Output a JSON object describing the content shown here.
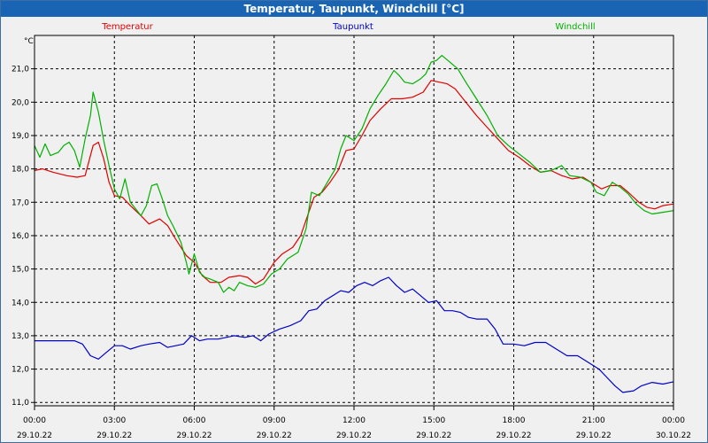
{
  "window": {
    "title": "Temperatur, Taupunkt, Windchill [°C]"
  },
  "chart_data": {
    "type": "line",
    "title": "Temperatur, Taupunkt, Windchill [°C]",
    "ylabel": "°C",
    "ylim": [
      10.9,
      22.0
    ],
    "xlim": [
      0,
      24
    ],
    "grid": true,
    "legend_placement": "top",
    "x_ticks": [
      {
        "x": 0,
        "time": "00:00",
        "date": "29.10.22"
      },
      {
        "x": 3,
        "time": "03:00",
        "date": "29.10.22"
      },
      {
        "x": 6,
        "time": "06:00",
        "date": "29.10.22"
      },
      {
        "x": 9,
        "time": "09:00",
        "date": "29.10.22"
      },
      {
        "x": 12,
        "time": "12:00",
        "date": "29.10.22"
      },
      {
        "x": 15,
        "time": "15:00",
        "date": "29.10.22"
      },
      {
        "x": 18,
        "time": "18:00",
        "date": "29.10.22"
      },
      {
        "x": 21,
        "time": "21:00",
        "date": "29.10.22"
      },
      {
        "x": 24,
        "time": "00:00",
        "date": "30.10.22"
      }
    ],
    "y_ticks": [
      "11,0",
      "12,0",
      "13,0",
      "14,0",
      "15,0",
      "16,0",
      "17,0",
      "18,0",
      "19,0",
      "20,0",
      "21,0"
    ],
    "y_tick_values": [
      11,
      12,
      13,
      14,
      15,
      16,
      17,
      18,
      19,
      20,
      21
    ],
    "series": [
      {
        "name": "Temperatur",
        "color": "#e00000",
        "points": [
          [
            0,
            17.95
          ],
          [
            0.3,
            18.0
          ],
          [
            0.7,
            17.9
          ],
          [
            1.2,
            17.8
          ],
          [
            1.6,
            17.75
          ],
          [
            1.9,
            17.8
          ],
          [
            2.2,
            18.7
          ],
          [
            2.4,
            18.8
          ],
          [
            2.6,
            18.3
          ],
          [
            2.8,
            17.6
          ],
          [
            3.0,
            17.2
          ],
          [
            3.3,
            17.15
          ],
          [
            3.6,
            16.9
          ],
          [
            4.0,
            16.6
          ],
          [
            4.3,
            16.35
          ],
          [
            4.7,
            16.5
          ],
          [
            5.0,
            16.3
          ],
          [
            5.3,
            15.9
          ],
          [
            5.7,
            15.4
          ],
          [
            6.0,
            15.2
          ],
          [
            6.3,
            14.8
          ],
          [
            6.6,
            14.6
          ],
          [
            7.0,
            14.6
          ],
          [
            7.3,
            14.75
          ],
          [
            7.7,
            14.8
          ],
          [
            8.0,
            14.75
          ],
          [
            8.3,
            14.55
          ],
          [
            8.6,
            14.7
          ],
          [
            9.0,
            15.2
          ],
          [
            9.3,
            15.45
          ],
          [
            9.7,
            15.65
          ],
          [
            10.0,
            16.0
          ],
          [
            10.3,
            16.7
          ],
          [
            10.5,
            17.15
          ],
          [
            10.8,
            17.3
          ],
          [
            11.1,
            17.6
          ],
          [
            11.4,
            17.95
          ],
          [
            11.7,
            18.55
          ],
          [
            12.0,
            18.6
          ],
          [
            12.3,
            19.0
          ],
          [
            12.6,
            19.45
          ],
          [
            13.0,
            19.8
          ],
          [
            13.4,
            20.1
          ],
          [
            13.8,
            20.1
          ],
          [
            14.2,
            20.15
          ],
          [
            14.6,
            20.3
          ],
          [
            14.9,
            20.65
          ],
          [
            15.2,
            20.6
          ],
          [
            15.5,
            20.55
          ],
          [
            15.8,
            20.4
          ],
          [
            16.2,
            20.0
          ],
          [
            16.6,
            19.6
          ],
          [
            17.0,
            19.25
          ],
          [
            17.4,
            18.9
          ],
          [
            17.8,
            18.55
          ],
          [
            18.2,
            18.35
          ],
          [
            18.6,
            18.1
          ],
          [
            19.0,
            17.9
          ],
          [
            19.4,
            17.95
          ],
          [
            19.8,
            17.8
          ],
          [
            20.2,
            17.7
          ],
          [
            20.6,
            17.75
          ],
          [
            21.0,
            17.55
          ],
          [
            21.3,
            17.4
          ],
          [
            21.6,
            17.5
          ],
          [
            22.0,
            17.5
          ],
          [
            22.3,
            17.3
          ],
          [
            22.7,
            17.0
          ],
          [
            23.0,
            16.85
          ],
          [
            23.3,
            16.8
          ],
          [
            23.6,
            16.9
          ],
          [
            24.0,
            16.95
          ]
        ]
      },
      {
        "name": "Taupunkt",
        "color": "#0000c8",
        "points": [
          [
            0,
            12.85
          ],
          [
            0.5,
            12.85
          ],
          [
            1.0,
            12.85
          ],
          [
            1.5,
            12.85
          ],
          [
            1.8,
            12.75
          ],
          [
            2.1,
            12.4
          ],
          [
            2.4,
            12.3
          ],
          [
            2.7,
            12.5
          ],
          [
            3.0,
            12.7
          ],
          [
            3.3,
            12.7
          ],
          [
            3.6,
            12.6
          ],
          [
            4.0,
            12.7
          ],
          [
            4.3,
            12.75
          ],
          [
            4.7,
            12.8
          ],
          [
            5.0,
            12.65
          ],
          [
            5.3,
            12.7
          ],
          [
            5.6,
            12.75
          ],
          [
            5.9,
            13.0
          ],
          [
            6.2,
            12.85
          ],
          [
            6.5,
            12.9
          ],
          [
            6.9,
            12.9
          ],
          [
            7.2,
            12.95
          ],
          [
            7.5,
            13.0
          ],
          [
            7.9,
            12.95
          ],
          [
            8.2,
            13.0
          ],
          [
            8.5,
            12.85
          ],
          [
            8.8,
            13.05
          ],
          [
            9.2,
            13.2
          ],
          [
            9.6,
            13.3
          ],
          [
            10.0,
            13.45
          ],
          [
            10.3,
            13.75
          ],
          [
            10.6,
            13.8
          ],
          [
            10.9,
            14.05
          ],
          [
            11.2,
            14.2
          ],
          [
            11.5,
            14.35
          ],
          [
            11.8,
            14.3
          ],
          [
            12.1,
            14.5
          ],
          [
            12.4,
            14.6
          ],
          [
            12.7,
            14.5
          ],
          [
            13.0,
            14.65
          ],
          [
            13.3,
            14.75
          ],
          [
            13.6,
            14.5
          ],
          [
            13.9,
            14.3
          ],
          [
            14.2,
            14.4
          ],
          [
            14.5,
            14.2
          ],
          [
            14.8,
            14.0
          ],
          [
            15.1,
            14.05
          ],
          [
            15.4,
            13.75
          ],
          [
            15.7,
            13.75
          ],
          [
            16.0,
            13.7
          ],
          [
            16.3,
            13.55
          ],
          [
            16.6,
            13.5
          ],
          [
            17.0,
            13.5
          ],
          [
            17.3,
            13.2
          ],
          [
            17.6,
            12.75
          ],
          [
            18.0,
            12.75
          ],
          [
            18.4,
            12.7
          ],
          [
            18.8,
            12.8
          ],
          [
            19.2,
            12.8
          ],
          [
            19.6,
            12.6
          ],
          [
            20.0,
            12.4
          ],
          [
            20.4,
            12.4
          ],
          [
            20.8,
            12.2
          ],
          [
            21.2,
            12.0
          ],
          [
            21.5,
            11.75
          ],
          [
            21.8,
            11.5
          ],
          [
            22.1,
            11.3
          ],
          [
            22.5,
            11.35
          ],
          [
            22.8,
            11.5
          ],
          [
            23.2,
            11.6
          ],
          [
            23.6,
            11.55
          ],
          [
            24.0,
            11.62
          ]
        ]
      },
      {
        "name": "Windchill",
        "color": "#00b000",
        "points": [
          [
            0,
            18.7
          ],
          [
            0.2,
            18.35
          ],
          [
            0.4,
            18.75
          ],
          [
            0.6,
            18.4
          ],
          [
            0.9,
            18.5
          ],
          [
            1.1,
            18.7
          ],
          [
            1.3,
            18.8
          ],
          [
            1.5,
            18.55
          ],
          [
            1.7,
            18.05
          ],
          [
            1.9,
            18.9
          ],
          [
            2.1,
            19.6
          ],
          [
            2.2,
            20.3
          ],
          [
            2.4,
            19.7
          ],
          [
            2.6,
            18.85
          ],
          [
            2.8,
            18.1
          ],
          [
            3.0,
            17.4
          ],
          [
            3.2,
            17.1
          ],
          [
            3.4,
            17.7
          ],
          [
            3.6,
            17.0
          ],
          [
            3.8,
            16.8
          ],
          [
            4.0,
            16.6
          ],
          [
            4.2,
            16.9
          ],
          [
            4.4,
            17.5
          ],
          [
            4.6,
            17.55
          ],
          [
            4.8,
            17.1
          ],
          [
            5.0,
            16.6
          ],
          [
            5.2,
            16.3
          ],
          [
            5.5,
            15.8
          ],
          [
            5.7,
            15.2
          ],
          [
            5.8,
            14.85
          ],
          [
            6.0,
            15.45
          ],
          [
            6.2,
            14.9
          ],
          [
            6.4,
            14.75
          ],
          [
            6.6,
            14.7
          ],
          [
            6.9,
            14.6
          ],
          [
            7.1,
            14.3
          ],
          [
            7.3,
            14.45
          ],
          [
            7.5,
            14.35
          ],
          [
            7.7,
            14.6
          ],
          [
            8.0,
            14.5
          ],
          [
            8.3,
            14.45
          ],
          [
            8.6,
            14.55
          ],
          [
            8.9,
            14.85
          ],
          [
            9.2,
            15.0
          ],
          [
            9.5,
            15.3
          ],
          [
            9.9,
            15.5
          ],
          [
            10.2,
            16.2
          ],
          [
            10.4,
            17.3
          ],
          [
            10.7,
            17.2
          ],
          [
            11.0,
            17.6
          ],
          [
            11.3,
            18.0
          ],
          [
            11.5,
            18.6
          ],
          [
            11.7,
            19.0
          ],
          [
            12.0,
            18.85
          ],
          [
            12.3,
            19.2
          ],
          [
            12.6,
            19.8
          ],
          [
            12.9,
            20.2
          ],
          [
            13.2,
            20.55
          ],
          [
            13.5,
            20.95
          ],
          [
            13.7,
            20.8
          ],
          [
            13.9,
            20.6
          ],
          [
            14.2,
            20.55
          ],
          [
            14.5,
            20.7
          ],
          [
            14.7,
            20.85
          ],
          [
            14.9,
            21.2
          ],
          [
            15.1,
            21.25
          ],
          [
            15.3,
            21.4
          ],
          [
            15.6,
            21.2
          ],
          [
            15.9,
            21.0
          ],
          [
            16.2,
            20.6
          ],
          [
            16.6,
            20.1
          ],
          [
            17.0,
            19.6
          ],
          [
            17.4,
            19.0
          ],
          [
            17.8,
            18.7
          ],
          [
            18.2,
            18.45
          ],
          [
            18.6,
            18.2
          ],
          [
            19.0,
            17.9
          ],
          [
            19.4,
            17.95
          ],
          [
            19.8,
            18.1
          ],
          [
            20.1,
            17.8
          ],
          [
            20.5,
            17.75
          ],
          [
            20.9,
            17.6
          ],
          [
            21.1,
            17.3
          ],
          [
            21.4,
            17.2
          ],
          [
            21.7,
            17.6
          ],
          [
            22.0,
            17.45
          ],
          [
            22.3,
            17.25
          ],
          [
            22.6,
            16.95
          ],
          [
            22.9,
            16.75
          ],
          [
            23.2,
            16.65
          ],
          [
            23.6,
            16.7
          ],
          [
            24.0,
            16.75
          ]
        ]
      }
    ]
  }
}
